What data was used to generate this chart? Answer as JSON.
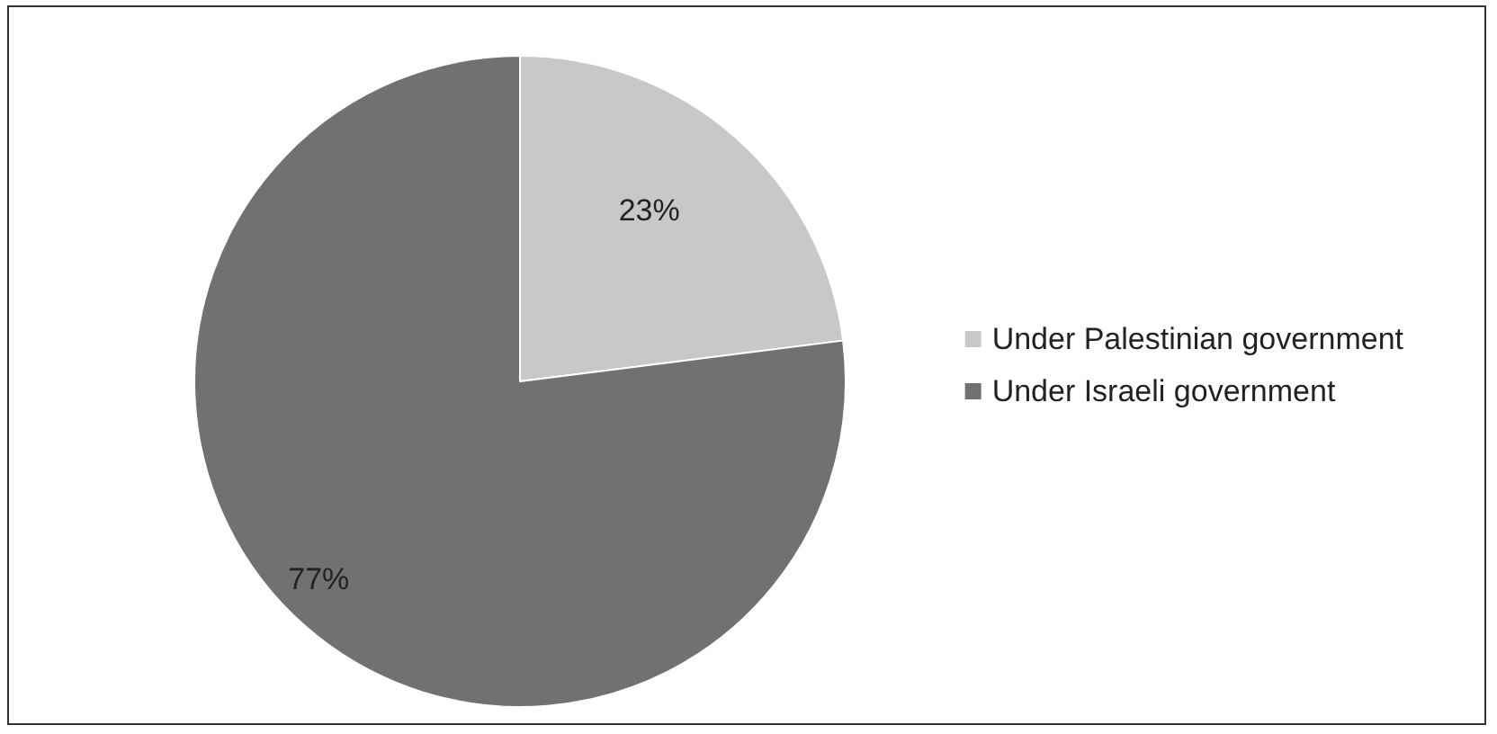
{
  "chart_data": {
    "type": "pie",
    "categories": [
      "Under Palestinian government",
      "Under Israeli government"
    ],
    "values": [
      23,
      77
    ],
    "colors": [
      "#c8c8c8",
      "#717171"
    ],
    "value_labels": [
      "23%",
      "77%"
    ],
    "legend": "right"
  }
}
